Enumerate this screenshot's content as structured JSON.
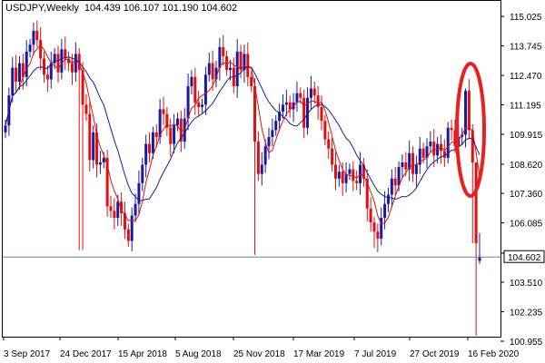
{
  "header": {
    "symbol": "USDJPY,Weekly",
    "open": "104.439",
    "high": "106.107",
    "low": "101.190",
    "close": "104.602"
  },
  "colors": {
    "bull": "#1a1aa0",
    "bear": "#e01010",
    "ma_fast": "#e01010",
    "ma_slow": "#1a1aa0",
    "highlight": "#e82020",
    "price_line": "#6f7f9f",
    "price_label_bg": "#ffffff"
  },
  "chart_data": {
    "type": "candlestick",
    "title": "USDJPY,Weekly",
    "grid": false,
    "ylim": [
      100.955,
      115.185
    ],
    "y_ticks": [
      "115.025",
      "113.745",
      "112.470",
      "111.195",
      "109.915",
      "108.620",
      "107.360",
      "106.085",
      "104.770",
      "103.510",
      "102.235",
      "100.955"
    ],
    "x_ticks": [
      "3 Sep 2017",
      "24 Dec 2017",
      "15 Apr 2018",
      "5 Aug 2018",
      "25 Nov 2018",
      "17 Mar 2019",
      "7 Jul 2019",
      "27 Oct 2019",
      "16 Feb 2020"
    ],
    "current_price": "104.602",
    "series": [
      {
        "name": "",
        "kind": "ohlc",
        "close": [
          110.3,
          111.6,
          112.8,
          112.2,
          113.0,
          112.4,
          113.5,
          113.8,
          114.4,
          114.0,
          113.2,
          112.5,
          112.3,
          113.0,
          113.4,
          112.6,
          113.6,
          113.2,
          113.0,
          112.6,
          113.4,
          112.7,
          111.2,
          110.8,
          108.8,
          110.0,
          108.6,
          108.7,
          108.9,
          106.8,
          106.6,
          106.3,
          107.0,
          106.5,
          105.8,
          105.3,
          106.4,
          106.9,
          107.8,
          108.6,
          109.5,
          109.1,
          110.0,
          109.8,
          111.0,
          110.8,
          110.2,
          109.5,
          110.3,
          110.6,
          109.6,
          110.6,
          112.0,
          112.4,
          111.3,
          111.1,
          111.2,
          112.5,
          113.0,
          112.3,
          112.8,
          113.7,
          113.3,
          112.7,
          112.8,
          112.0,
          113.5,
          112.7,
          113.4,
          112.4,
          112.0,
          109.6,
          108.2,
          108.6,
          109.4,
          109.8,
          110.1,
          110.5,
          110.9,
          111.2,
          111.3,
          111.0,
          111.3,
          111.7,
          111.5,
          110.2,
          111.5,
          111.9,
          111.6,
          111.1,
          110.5,
          109.7,
          109.3,
          108.6,
          108.0,
          108.3,
          107.8,
          108.2,
          108.4,
          107.9,
          107.8,
          108.6,
          108.0,
          106.7,
          106.1,
          105.7,
          105.4,
          106.3,
          106.9,
          107.3,
          108.0,
          107.7,
          108.5,
          108.7,
          108.4,
          109.1,
          108.2,
          108.6,
          109.3,
          108.9,
          109.4,
          109.6,
          109.0,
          109.5,
          109.2,
          108.9,
          110.2,
          110.1,
          109.4,
          109.8,
          109.9,
          111.8,
          110.1,
          108.7,
          105.2,
          104.602
        ]
      },
      {
        "name": "",
        "kind": "moving-average"
      },
      {
        "name": "",
        "kind": "moving-average"
      }
    ]
  }
}
